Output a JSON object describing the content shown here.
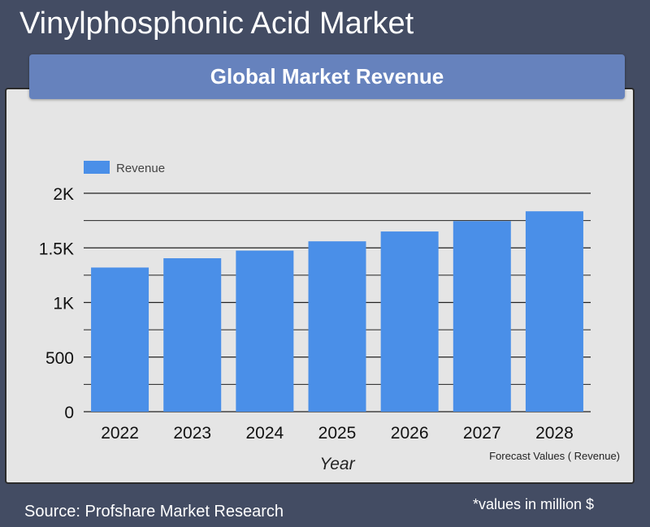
{
  "header": {
    "title": "Vinylphosphonic Acid Market"
  },
  "banner": {
    "title": "Global Market Revenue"
  },
  "chart_data": {
    "type": "bar",
    "categories": [
      "2022",
      "2023",
      "2024",
      "2025",
      "2026",
      "2027",
      "2028"
    ],
    "series": [
      {
        "name": "Revenue",
        "values": [
          1320,
          1405,
          1475,
          1560,
          1650,
          1745,
          1835
        ],
        "color": "#4a8fe8"
      }
    ],
    "xlabel": "Year",
    "ylabel": "",
    "ylim": [
      0,
      2000
    ],
    "yticks": [
      0,
      500,
      1000,
      1500,
      2000
    ],
    "ytick_labels": [
      "0",
      "500",
      "1K",
      "1.5K",
      "2K"
    ],
    "grid": true,
    "legend": "top-left",
    "annotation": "Forecast Values ( Revenue)"
  },
  "footer": {
    "source": "Source: Profshare Market Research",
    "units": "*values in million $"
  }
}
